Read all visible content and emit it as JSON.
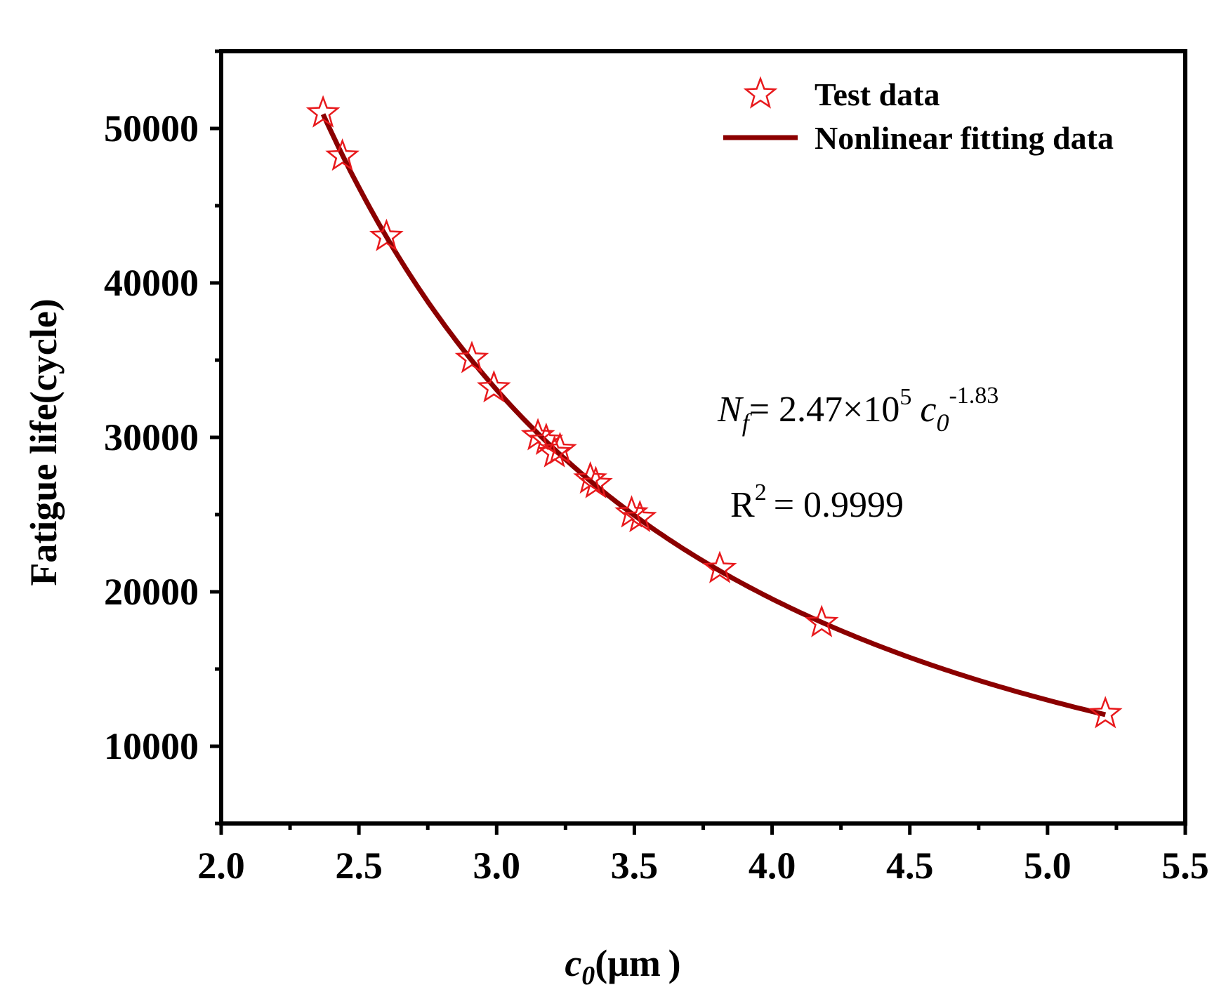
{
  "chart_data": {
    "type": "scatter",
    "title": "",
    "xlabel": {
      "main": "c",
      "sub": "0",
      "units": "(μm )"
    },
    "ylabel": "Fatigue life(cycle)",
    "xlim": [
      2.0,
      5.5
    ],
    "ylim": [
      5000,
      55000
    ],
    "xticks": [
      2.0,
      2.5,
      3.0,
      3.5,
      4.0,
      4.5,
      5.0,
      5.5
    ],
    "xtick_labels": [
      "2.0",
      "2.5",
      "3.0",
      "3.5",
      "4.0",
      "4.5",
      "5.0",
      "5.5"
    ],
    "yticks": [
      10000,
      20000,
      30000,
      40000,
      50000
    ],
    "ytick_labels": [
      "10000",
      "20000",
      "30000",
      "40000",
      "50000"
    ],
    "grid": false,
    "legend_position": "top-right",
    "series": [
      {
        "name": "Test data",
        "kind": "scatter",
        "marker": "star-open",
        "color": "#e8191c",
        "x": [
          2.37,
          2.44,
          2.6,
          2.91,
          2.99,
          3.15,
          3.18,
          3.21,
          3.23,
          3.34,
          3.36,
          3.49,
          3.52,
          3.81,
          4.18,
          5.21
        ],
        "y": [
          51000,
          48200,
          43000,
          35100,
          33200,
          30100,
          29800,
          29000,
          29200,
          27300,
          27000,
          25100,
          24800,
          21500,
          18000,
          12100
        ]
      },
      {
        "name": "Nonlinear fitting data",
        "kind": "line",
        "color": "#8b0000",
        "equation": {
          "coef": 247000,
          "exponent": -1.83
        },
        "x_range": [
          2.37,
          5.21
        ]
      }
    ],
    "annotations": {
      "equation": {
        "lhs": "N",
        "lhs_sub": "f",
        "mid": "= 2.47×10",
        "pow": "5",
        "var": "c",
        "var_sub": "0",
        "exp": "-1.83"
      },
      "r2": {
        "prefix": "R",
        "pow": "2",
        "value": "= 0.9999"
      }
    }
  }
}
